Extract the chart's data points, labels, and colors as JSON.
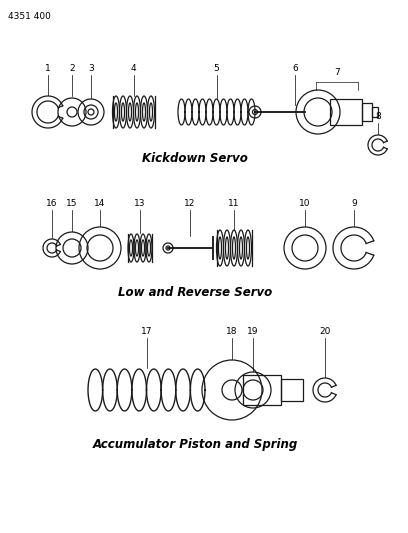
{
  "page_ref": "4351 400",
  "bg_color": "#ffffff",
  "line_color": "#1a1a1a",
  "section1_label": "Kickdown Servo",
  "section2_label": "Low and Reverse Servo",
  "section3_label": "Accumulator Piston and Spring",
  "figsize": [
    4.08,
    5.33
  ],
  "dpi": 100,
  "lw": 0.9
}
